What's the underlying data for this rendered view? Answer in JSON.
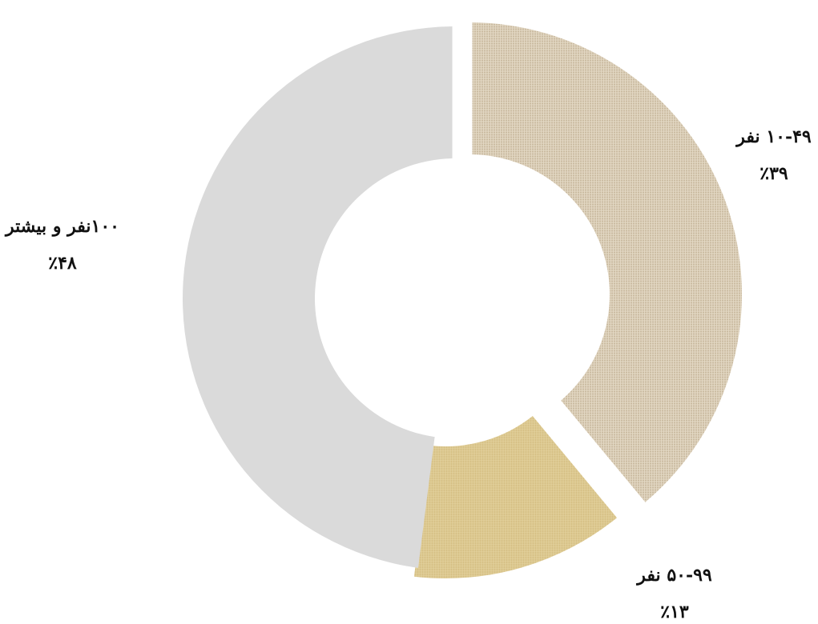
{
  "chart_data": {
    "type": "pie",
    "variant": "donut",
    "title": "",
    "slices": [
      {
        "label": "۱۰-۴۹ نفر",
        "percent_label": "٪۳۹",
        "value": 39,
        "color": "#d8cbb4"
      },
      {
        "label": "۵۰-۹۹ نفر",
        "percent_label": "٪۱۳",
        "value": 13,
        "color": "#ddc88f"
      },
      {
        "label": "۱۰۰نفر و بیشتر",
        "percent_label": "٪۴۸",
        "value": 48,
        "color": "#dadada"
      }
    ],
    "legend": "none",
    "start_angle": "12 o'clock",
    "direction": "clockwise"
  }
}
